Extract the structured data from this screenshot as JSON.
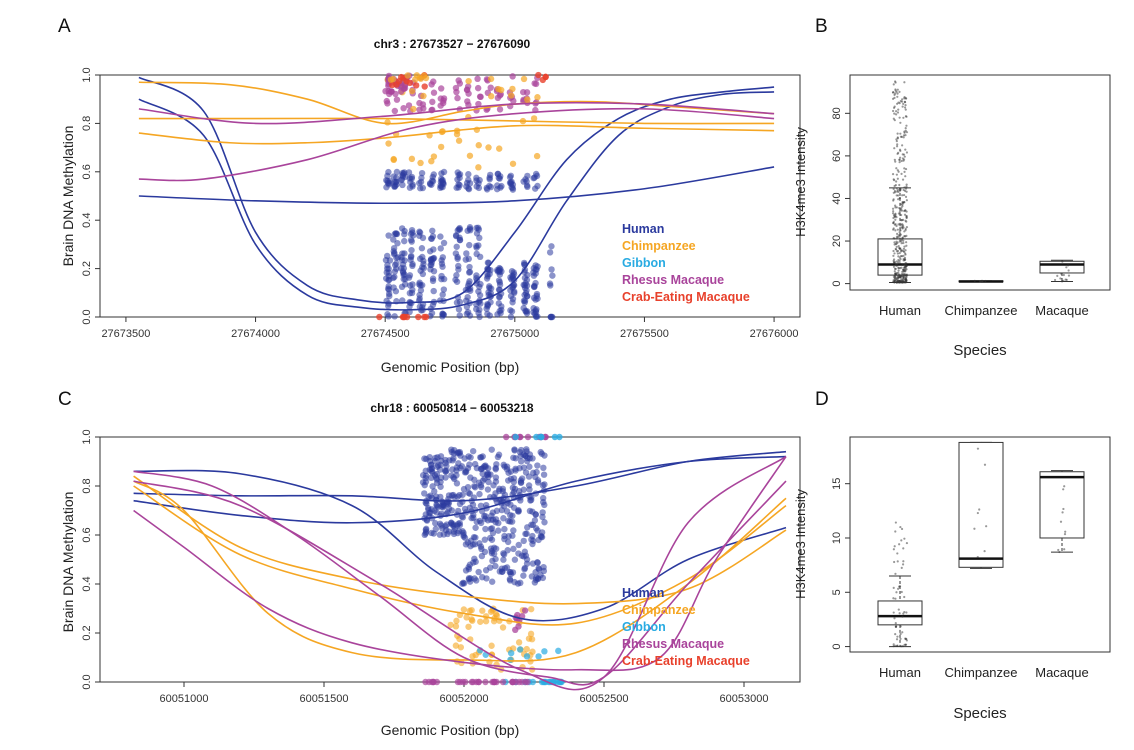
{
  "figure": {
    "panel_letters": [
      "A",
      "B",
      "C",
      "D"
    ]
  },
  "chart_data": [
    {
      "panel": "A",
      "type": "scatter",
      "title": "chr3 : 27673527 − 27676090",
      "xlabel": "Genomic Position (bp)",
      "ylabel": "Brain DNA Methylation",
      "xlim": [
        27673400,
        27676100
      ],
      "ylim": [
        0,
        1
      ],
      "xticks": [
        27673500,
        27674000,
        27674500,
        27675000,
        27675500,
        27676000
      ],
      "yticks": [
        0.0,
        0.2,
        0.4,
        0.6,
        0.8,
        1.0
      ],
      "legend": {
        "position": "bottom-right",
        "entries": [
          {
            "name": "Human",
            "color": "#2b3a9e"
          },
          {
            "name": "Chimpanzee",
            "color": "#f5a623"
          },
          {
            "name": "Gibbon",
            "color": "#29abe2"
          },
          {
            "name": "Rhesus Macaque",
            "color": "#a9449b"
          },
          {
            "name": "Crab-Eating Macaque",
            "color": "#e8412c"
          }
        ]
      },
      "series": [
        {
          "species": "Human",
          "x": [
            27673550,
            27673800,
            27674000,
            27674200,
            27674400,
            27674600,
            27674800,
            27675000,
            27675200,
            27675400,
            27675600,
            27675800,
            27676000
          ],
          "y": [
            0.99,
            0.85,
            0.35,
            0.13,
            0.07,
            0.06,
            0.1,
            0.35,
            0.65,
            0.82,
            0.9,
            0.93,
            0.95
          ]
        },
        {
          "species": "Human",
          "x": [
            27673550,
            27673800,
            27674000,
            27674200,
            27674400,
            27674600,
            27674800,
            27675000,
            27675200,
            27675400,
            27675600,
            27675800,
            27676000
          ],
          "y": [
            0.9,
            0.75,
            0.3,
            0.09,
            0.04,
            0.03,
            0.05,
            0.15,
            0.48,
            0.75,
            0.87,
            0.92,
            0.93
          ]
        },
        {
          "species": "Human",
          "x": [
            27673550,
            27674000,
            27674500,
            27675000,
            27675500,
            27676000
          ],
          "y": [
            0.5,
            0.48,
            0.47,
            0.48,
            0.53,
            0.62
          ]
        },
        {
          "species": "Chimpanzee",
          "x": [
            27673550,
            27673900,
            27674200,
            27674500,
            27674800,
            27675000,
            27675300,
            27675600,
            27676000
          ],
          "y": [
            0.97,
            0.96,
            0.9,
            0.8,
            0.85,
            0.88,
            0.89,
            0.87,
            0.84
          ]
        },
        {
          "species": "Chimpanzee",
          "x": [
            27673550,
            27674000,
            27674500,
            27675000,
            27675500,
            27676000
          ],
          "y": [
            0.82,
            0.82,
            0.82,
            0.81,
            0.8,
            0.8
          ]
        },
        {
          "species": "Chimpanzee",
          "x": [
            27673550,
            27673900,
            27674200,
            27674500,
            27675000,
            27675500,
            27676000
          ],
          "y": [
            0.76,
            0.72,
            0.72,
            0.74,
            0.79,
            0.78,
            0.77
          ]
        },
        {
          "species": "Rhesus Macaque",
          "x": [
            27673550,
            27673800,
            27674200,
            27674600,
            27675000,
            27675500,
            27676000
          ],
          "y": [
            0.57,
            0.57,
            0.65,
            0.78,
            0.84,
            0.86,
            0.82
          ]
        },
        {
          "species": "Rhesus Macaque",
          "x": [
            27673550,
            27674000,
            27674500,
            27675000,
            27675500,
            27676000
          ],
          "y": [
            0.86,
            0.8,
            0.83,
            0.88,
            0.88,
            0.84
          ]
        }
      ]
    },
    {
      "panel": "B",
      "type": "box",
      "xlabel": "Species",
      "ylabel": "H3K4me3 Intensity",
      "categories": [
        "Human",
        "Chimpanzee",
        "Macaque"
      ],
      "ylim": [
        -3,
        98
      ],
      "yticks": [
        0,
        20,
        40,
        60,
        80
      ],
      "boxes": [
        {
          "name": "Human",
          "min": 0.5,
          "q1": 4,
          "median": 9,
          "q3": 21,
          "max": 45,
          "outliers_max": 95
        },
        {
          "name": "Chimpanzee",
          "min": 1,
          "q1": 1,
          "median": 1,
          "q3": 1.3,
          "max": 1.3
        },
        {
          "name": "Macaque",
          "min": 1,
          "q1": 5,
          "median": 9,
          "q3": 10.5,
          "max": 11
        }
      ]
    },
    {
      "panel": "C",
      "type": "scatter",
      "title": "chr18 : 60050814 − 60053218",
      "xlabel": "Genomic Position (bp)",
      "ylabel": "Brain DNA Methylation",
      "xlim": [
        60050700,
        60053200
      ],
      "ylim": [
        0,
        1
      ],
      "xticks": [
        60051000,
        60051500,
        60052000,
        60052500,
        60053000
      ],
      "yticks": [
        0.0,
        0.2,
        0.4,
        0.6,
        0.8,
        1.0
      ],
      "legend": {
        "position": "bottom-right",
        "entries": [
          {
            "name": "Human",
            "color": "#2b3a9e"
          },
          {
            "name": "Chimpanzee",
            "color": "#f5a623"
          },
          {
            "name": "Gibbon",
            "color": "#29abe2"
          },
          {
            "name": "Rhesus Macaque",
            "color": "#a9449b"
          },
          {
            "name": "Crab-Eating Macaque",
            "color": "#e8412c"
          }
        ]
      },
      "series": [
        {
          "species": "Human",
          "x": [
            60050820,
            60051200,
            60051600,
            60051900,
            60052200,
            60052500,
            60052800,
            60053150
          ],
          "y": [
            0.86,
            0.85,
            0.72,
            0.45,
            0.26,
            0.3,
            0.5,
            0.63
          ]
        },
        {
          "species": "Human",
          "x": [
            60050820,
            60051200,
            60051600,
            60052000,
            60052400,
            60052800,
            60053150
          ],
          "y": [
            0.77,
            0.76,
            0.76,
            0.74,
            0.8,
            0.9,
            0.94
          ]
        },
        {
          "species": "Human",
          "x": [
            60050820,
            60051200,
            60051600,
            60052000,
            60052400,
            60052800,
            60053150
          ],
          "y": [
            0.74,
            0.68,
            0.65,
            0.69,
            0.82,
            0.9,
            0.92
          ]
        },
        {
          "species": "Chimpanzee",
          "x": [
            60050820,
            60051200,
            60051600,
            60052000,
            60052400,
            60052800,
            60053150
          ],
          "y": [
            0.84,
            0.55,
            0.42,
            0.35,
            0.32,
            0.38,
            0.62
          ]
        },
        {
          "species": "Chimpanzee",
          "x": [
            60050820,
            60051200,
            60051600,
            60052000,
            60052400,
            60052800,
            60053150
          ],
          "y": [
            0.8,
            0.52,
            0.38,
            0.28,
            0.24,
            0.42,
            0.72
          ]
        },
        {
          "species": "Chimpanzee",
          "x": [
            60050820,
            60051000,
            60051300,
            60051600,
            60052000,
            60052400,
            60052800,
            60053150
          ],
          "y": [
            0.82,
            0.7,
            0.28,
            0.12,
            0.09,
            0.12,
            0.4,
            0.75
          ]
        },
        {
          "species": "Rhesus Macaque",
          "x": [
            60050820,
            60051100,
            60051400,
            60051700,
            60052000,
            60052300,
            60052500,
            60052800,
            60053150
          ],
          "y": [
            0.86,
            0.8,
            0.6,
            0.35,
            0.1,
            0.02,
            0.02,
            0.4,
            0.82
          ]
        },
        {
          "species": "Rhesus Macaque",
          "x": [
            60050820,
            60051000,
            60051300,
            60051600,
            60052000,
            60052400,
            60052700,
            60052900,
            60053150
          ],
          "y": [
            0.7,
            0.55,
            0.3,
            0.16,
            0.08,
            0.05,
            0.1,
            0.5,
            0.92
          ]
        },
        {
          "species": "Rhesus Macaque",
          "x": [
            60050820,
            60051200,
            60051700,
            60052200,
            60052500,
            60052800,
            60053150
          ],
          "y": [
            0.82,
            0.72,
            0.4,
            0.05,
            0.02,
            0.65,
            0.92
          ]
        }
      ]
    },
    {
      "panel": "D",
      "type": "box",
      "xlabel": "Species",
      "ylabel": "H3K4me3 Intensity",
      "categories": [
        "Human",
        "Chimpanzee",
        "Macaque"
      ],
      "ylim": [
        -0.5,
        19.3
      ],
      "yticks": [
        0,
        5,
        10,
        15
      ],
      "boxes": [
        {
          "name": "Human",
          "min": 0,
          "q1": 2,
          "median": 2.8,
          "q3": 4.2,
          "max": 6.5,
          "outliers_max": 11.5
        },
        {
          "name": "Chimpanzee",
          "min": 7.2,
          "q1": 7.3,
          "median": 8.1,
          "q3": 18.8,
          "max": 18.8
        },
        {
          "name": "Macaque",
          "min": 8.7,
          "q1": 10,
          "median": 15.6,
          "q3": 16.1,
          "max": 16.2
        }
      ]
    }
  ]
}
